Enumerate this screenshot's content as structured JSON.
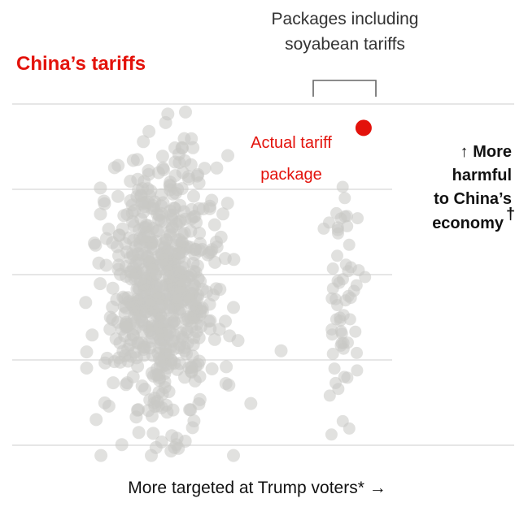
{
  "chart_data": {
    "type": "scatter",
    "title": "China’s tariffs",
    "bracket_label": [
      "Packages including",
      "soyabean tariffs"
    ],
    "annotation": [
      "Actual tariff",
      "package"
    ],
    "y_side_label": [
      "↑ More",
      "harmful",
      "to China’s",
      "economy"
    ],
    "y_side_footnote_mark": "†",
    "xlabel": "More targeted at Trump voters* →",
    "grid": true,
    "axis_ticks_printed": false,
    "colors": {
      "highlight": "#e3120b",
      "dots": "#c9c9c5",
      "grid": "#d7d7d7"
    },
    "groups": [
      {
        "name": "",
        "x_center": 0.3,
        "x_spread": 0.055,
        "y_center": 0.45,
        "y_spread": 0.19,
        "count": 650
      },
      {
        "name": "",
        "x_center": 0.66,
        "x_spread": 0.018,
        "y_center": 0.43,
        "y_spread": 0.17,
        "count": 60
      }
    ],
    "highlight_point": {
      "x": 0.7,
      "y": 0.93
    },
    "xlim": [
      0,
      1
    ],
    "ylim": [
      0,
      1
    ]
  }
}
